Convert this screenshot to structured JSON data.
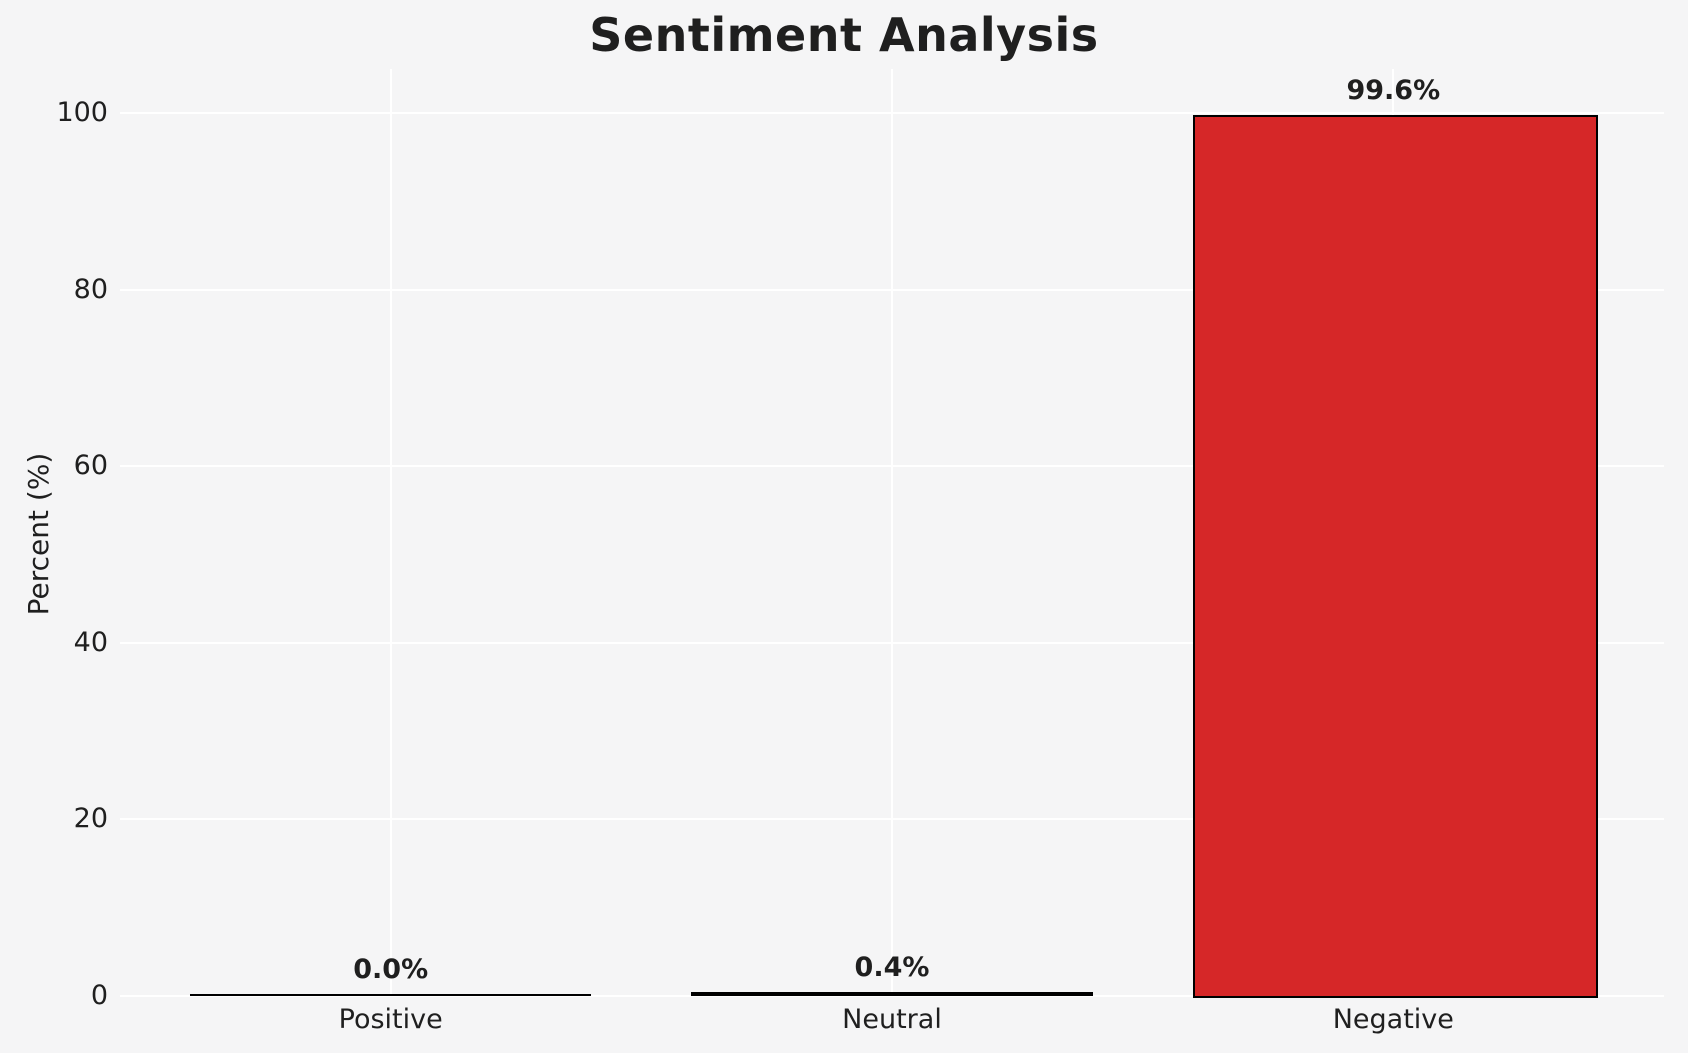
{
  "chart_data": {
    "type": "bar",
    "title": "Sentiment Analysis",
    "xlabel": "",
    "ylabel": "Percent (%)",
    "categories": [
      "Positive",
      "Neutral",
      "Negative"
    ],
    "values": [
      0.0,
      0.4,
      99.6
    ],
    "value_labels": [
      "0.0%",
      "0.4%",
      "99.6%"
    ],
    "bar_colors": [
      "#1a1a1a",
      "#1a1a1a",
      "#d62728"
    ],
    "bar_edge_color": "#000000",
    "yticks": [
      0,
      20,
      40,
      60,
      80,
      100
    ],
    "ylim": [
      0,
      105
    ],
    "grid": true,
    "legend": "none",
    "colors": {
      "background": "#f5f5f6",
      "gridline": "#ffffff",
      "text": "#1f1f1f",
      "negative_bar": "#d62728"
    }
  }
}
